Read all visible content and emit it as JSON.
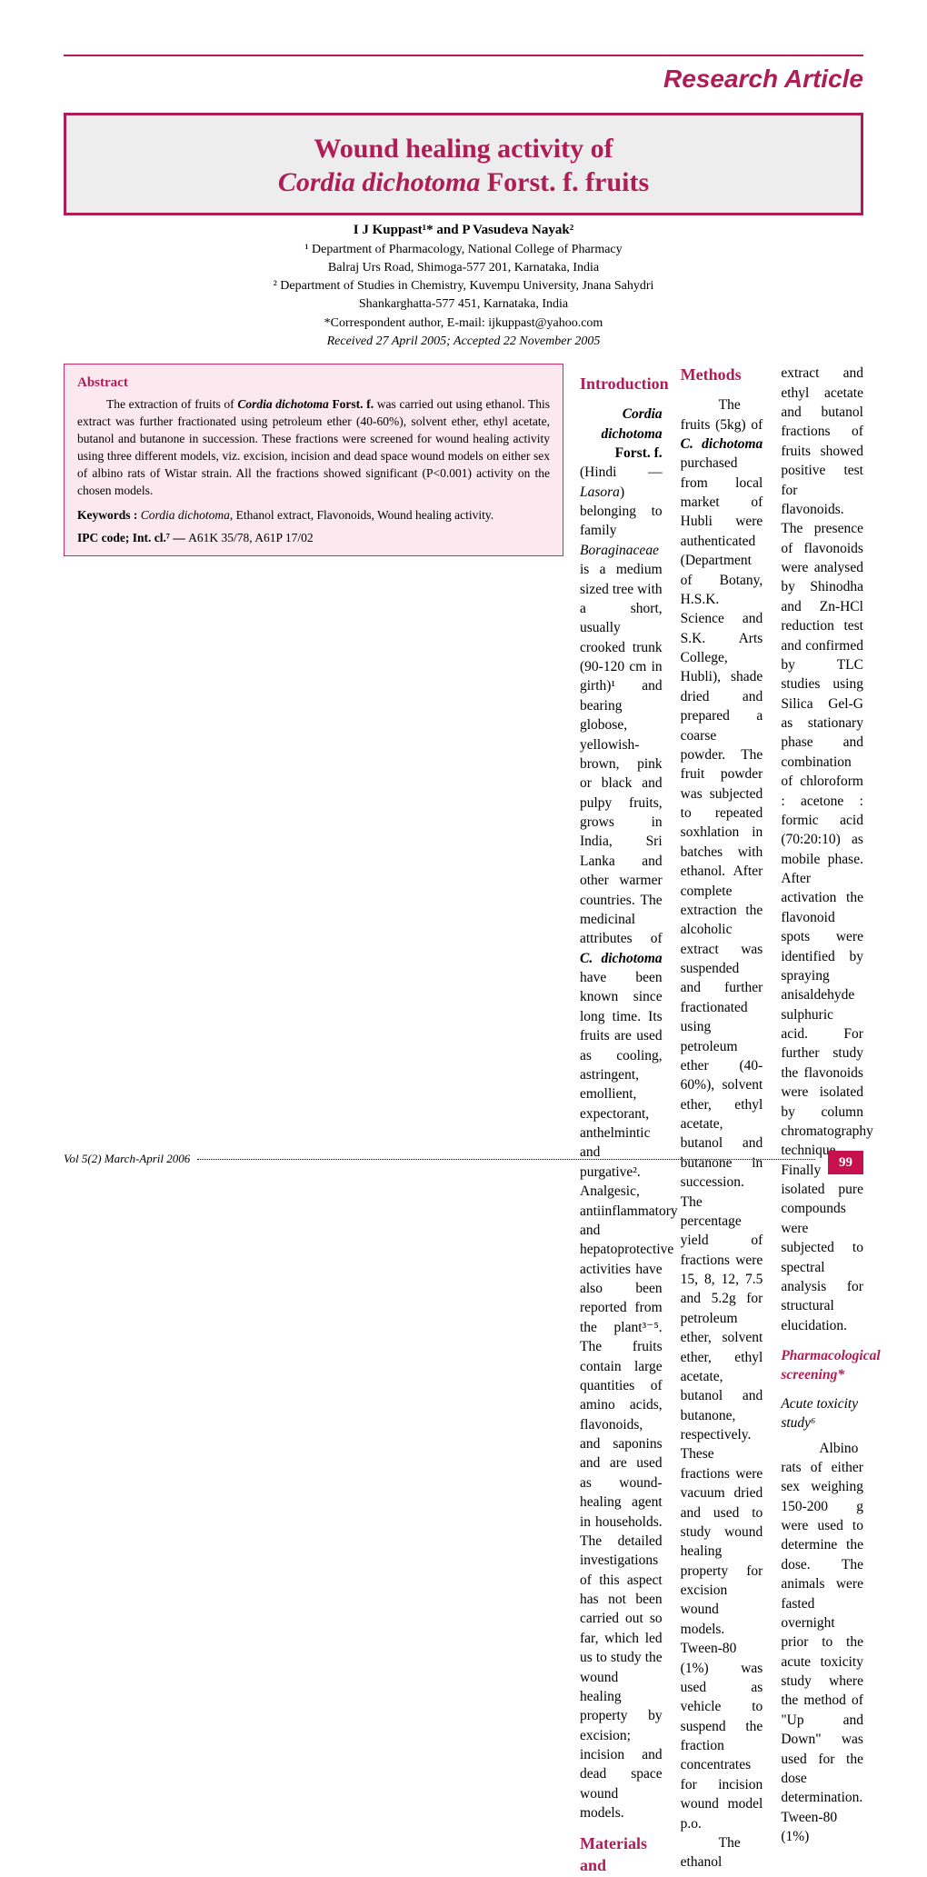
{
  "colors": {
    "accent": "#b01c56",
    "abstract_bg": "#fce9f0",
    "title_bg": "#ededed",
    "page_badge_bg": "#c8104e"
  },
  "header": {
    "label": "Research Article"
  },
  "title": {
    "line1": "Wound healing activity of",
    "line2_italic": "Cordia dichotoma",
    "line2_rest": " Forst. f. fruits"
  },
  "authors": {
    "main": "I J Kuppast¹* and P Vasudeva Nayak²",
    "aff1": "¹ Department of Pharmacology, National College of Pharmacy",
    "aff1b": "Balraj Urs Road, Shimoga-577 201, Karnataka, India",
    "aff2": "² Department of Studies in Chemistry, Kuvempu University, Jnana Sahydri",
    "aff2b": "Shankarghatta-577 451, Karnataka, India",
    "corr": "*Correspondent author, E-mail: ijkuppast@yahoo.com",
    "received": "Received 27 April 2005; Accepted 22 November 2005"
  },
  "abstract": {
    "heading": "Abstract",
    "text_lead": "The extraction of fruits of ",
    "text_bold": "Cordia dichotoma",
    "text_bold2": " Forst. f.",
    "text_rest": " was carried out using ethanol. This extract was further fractionated using petroleum ether (40-60%), solvent ether, ethyl acetate, butanol and butanone in succession. These fractions were screened for wound healing activity using three different models, viz. excision, incision and dead space wound models on either sex of albino rats of Wistar strain. All the fractions showed significant (P<0.001) activity on the chosen models.",
    "kw_label": "Keywords : ",
    "kw_italic": "Cordia dichotoma",
    "kw_rest": ", Ethanol extract, Flavonoids, Wound healing activity.",
    "ipc_label": "IPC code; Int. cl.⁷ — ",
    "ipc_val": "A61K 35/78, A61P 17/02"
  },
  "sections": {
    "intro_h": "Introduction",
    "mm_h": "Materials and Methods",
    "pharm_h": "Pharmacological screening*",
    "tox_h": "Acute toxicity study⁶"
  },
  "body": {
    "intro_lead_bold": "Cordia dichotoma",
    "intro_lead_bold2": " Forst. f.",
    "intro_p1a": "(Hindi — ",
    "intro_p1_it": "Lasora",
    "intro_p1b": ") belonging to family ",
    "intro_p1_it2": "Boraginaceae",
    "intro_p1c": " is a medium sized tree with a short, usually crooked trunk (90-120 cm in girth)¹ and bearing globose, yellowish-brown, pink or black and pulpy fruits, grows in India, Sri Lanka and other warmer countries. The medicinal attributes of ",
    "intro_p1_bold3": "C. dichotoma",
    "intro_p1d": " have been known since long time. Its fruits are used as cooling, astringent, emollient, expectorant, anthelmintic and purgative². Analgesic, antiinflammatory and hepatoprotective activities have also been reported from the plant³⁻⁵. The fruits contain large quantities of amino acids, flavonoids, and saponins and are used as wound-healing agent in households. The detailed investigations of this aspect has not been carried out so far, which led us to study the wound healing property by excision; incision and dead space wound models.",
    "mm_p1a": "The fruits (5kg) of ",
    "mm_p1_bold": "C. dichotoma",
    "mm_p1b": " purchased from local market of Hubli were authenticated (Department of Botany, H.S.K. Science and S.K. Arts College, Hubli), shade dried and prepared a coarse powder. The fruit powder was subjected to repeated soxhlation in batches with ethanol. After complete extraction the alcoholic extract was suspended and further fractionated using petroleum ether (40-60%), solvent ether, ethyl acetate, butanol and butanone in succession. The percentage yield of fractions were 15, 8, 12, 7.5 and 5.2g for petroleum ether, solvent ether, ethyl acetate, butanol and butanone, respectively. These fractions were vacuum dried and used to study wound healing property for excision wound models. Tween-80 (1%) was used as vehicle to suspend the fraction concentrates for incision wound model p.o.",
    "mm_p2": "The ethanol extract and ethyl acetate and butanol fractions of fruits showed positive test for flavonoids. The presence of flavonoids were analysed by Shinodha and Zn-HCl reduction test and confirmed by TLC studies using Silica Gel-G as stationary phase and combination of chloroform : acetone : formic acid (70:20:10) as mobile phase. After activation the flavonoid spots were identified by spraying anisaldehyde sulphuric acid. For further study the flavonoids were isolated by column chromatography technique. Finally the isolated pure compounds were subjected to spectral analysis for structural elucidation.",
    "tox_p1": "Albino rats of either sex weighing 150-200 g were used to determine the dose. The animals were fasted overnight prior to the acute toxicity study where the method of \"Up and Down\" was used for the dose determination. Tween-80 (1%)"
  },
  "footer": {
    "vol": "Vol 5(2) March-April 2006",
    "page": "99"
  }
}
